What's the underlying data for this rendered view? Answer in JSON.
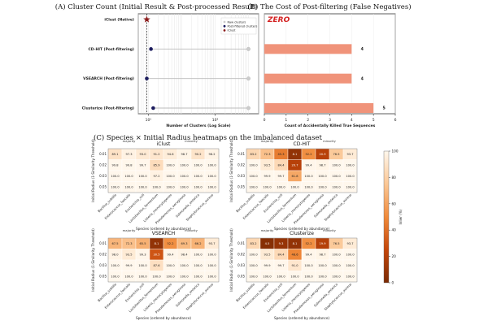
{
  "chart_data": [
    {
      "type": "scatter",
      "panel_title": "(A) Cluster Count (Initial Result & Post-processed Result)",
      "methods": [
        "iClust (Native)",
        "CD-HIT (Post-filtering)",
        "VSEARCH (Post-filtering)",
        "Clusterize (Post-filtering)"
      ],
      "raw_clusters": [
        null,
        9900,
        9900,
        9900
      ],
      "post_filtered_clusters": [
        null,
        12,
        9,
        14
      ],
      "iclust": 9,
      "xlabel": "Number of Clusters (Log Scale)",
      "xlim": [
        5,
        20000
      ],
      "xticks": [
        {
          "value": 10,
          "label": "10¹"
        },
        {
          "value": 1000,
          "label": "10³"
        }
      ],
      "legend": [
        "Raw clusters",
        "Post-filtered clusters",
        "iClust"
      ],
      "legend_position": "top-right",
      "colors": {
        "raw": "#cccccc",
        "post": "#1c1c5e",
        "iclust": "#8b1a1a",
        "line": "#bbbbbb"
      }
    },
    {
      "type": "bar",
      "orientation": "horizontal",
      "panel_title": "(B) The Cost of Post-filtering (False Negatives)",
      "categories": [
        "iClust (Native)",
        "CD-HIT (Post-filtering)",
        "VSEARCH (Post-filtering)",
        "Clusterize (Post-filtering)"
      ],
      "values": [
        0,
        4,
        4,
        5
      ],
      "value_labels": [
        "",
        "4",
        "4",
        "5"
      ],
      "zero_annotation": "ZERO",
      "xlabel": "Count of Accidentally Killed True Sequences",
      "xlim": [
        0,
        6
      ],
      "xticks": [
        0,
        1,
        2,
        3,
        4,
        5,
        6
      ],
      "bar_color": "#f0937a",
      "annotation_color": "#d32020"
    },
    {
      "type": "heatmap",
      "panel_title": "(C) Species × Initial Radius heatmaps on the imbalanced dataset",
      "species": [
        "Bacillus_subtilis",
        "Enterococcus_faecalis",
        "Escherichia_coli",
        "Lactobacillus_fermentum",
        "Listeria_monocytogenes",
        "Pseudomonas_aeruginosa",
        "Salmonella_enterica",
        "Staphylococcus_aureus"
      ],
      "radii": [
        "0.01",
        "0.02",
        "0.03",
        "0.05"
      ],
      "group_labels": [
        "majority",
        "minority"
      ],
      "xlabel": "Species (ordered by abundance)",
      "ylabel": "Initial Radius (1-Similarity Threshold)",
      "colorbar": {
        "label": "Inlier (%)",
        "min": 0,
        "max": 100,
        "ticks": [
          0,
          20,
          40,
          60,
          80,
          100
        ]
      },
      "heatmaps": [
        {
          "title": "iClust",
          "values": [
            [
              89.1,
              97.3,
              93.0,
              91.2,
              94.6,
              98.7,
              90.2,
              98.2
            ],
            [
              99.8,
              99.8,
              99.7,
              85.9,
              100.0,
              100.0,
              100.0,
              100.0
            ],
            [
              100.0,
              100.0,
              100.0,
              97.2,
              100.0,
              100.0,
              100.0,
              100.0
            ],
            [
              100.0,
              100.0,
              100.0,
              100.0,
              100.0,
              100.0,
              100.0,
              100.0
            ]
          ]
        },
        {
          "title": "CD-HIT",
          "values": [
            [
              83.2,
              72.3,
              45.3,
              8.1,
              52.2,
              20.9,
              76.5,
              93.7
            ],
            [
              100.0,
              93.5,
              84.4,
              20.7,
              99.4,
              98.7,
              100.0,
              100.0
            ],
            [
              100.0,
              99.9,
              99.7,
              61.8,
              100.0,
              100.0,
              100.0,
              100.0
            ],
            [
              100.0,
              100.0,
              100.0,
              100.0,
              100.0,
              100.0,
              100.0,
              100.0
            ]
          ]
        },
        {
          "title": "VSEARCH",
          "values": [
            [
              67.5,
              72.3,
              65.5,
              8.1,
              52.2,
              69.3,
              66.2,
              93.7
            ],
            [
              98.0,
              93.5,
              99.3,
              30.5,
              99.4,
              98.4,
              100.0,
              100.0
            ],
            [
              100.0,
              99.9,
              100.0,
              87.6,
              100.0,
              100.0,
              100.0,
              100.0
            ],
            [
              100.0,
              100.0,
              100.0,
              100.0,
              100.0,
              100.0,
              100.0,
              100.0
            ]
          ]
        },
        {
          "title": "Clusterize",
          "values": [
            [
              83.2,
              4.5,
              9.3,
              8.1,
              52.2,
              19.9,
              76.5,
              93.7
            ],
            [
              100.0,
              93.5,
              84.4,
              48.6,
              99.4,
              98.7,
              100.0,
              100.0
            ],
            [
              100.0,
              99.9,
              99.7,
              91.0,
              100.0,
              100.0,
              100.0,
              100.0
            ],
            [
              100.0,
              100.0,
              100.0,
              100.0,
              100.0,
              100.0,
              100.0,
              100.0
            ]
          ]
        }
      ]
    }
  ]
}
